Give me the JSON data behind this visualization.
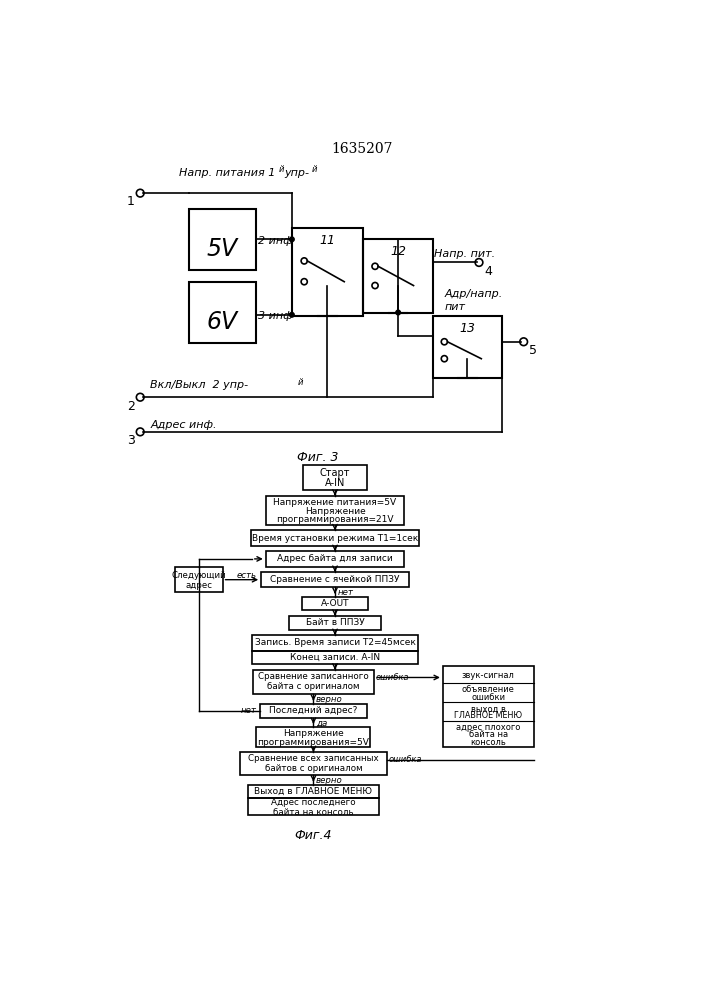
{
  "title": "1635207",
  "fig3_label": "Фиг. 3",
  "fig4_label": "Фиг.4",
  "background_color": "#ffffff",
  "line_color": "#000000",
  "text_color": "#000000"
}
